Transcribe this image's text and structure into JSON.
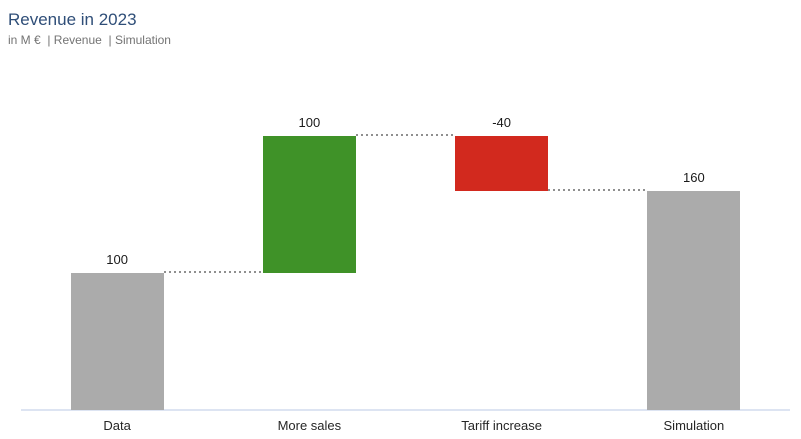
{
  "header": {
    "title": "Revenue in 2023",
    "subtitle": "in M €  | Revenue  | Simulation"
  },
  "chart_data": {
    "type": "bar",
    "variant": "waterfall",
    "title": "Revenue in 2023",
    "unit_label": "in M €",
    "measure_labels": [
      "Revenue",
      "Simulation"
    ],
    "categories": [
      "Data",
      "More sales",
      "Tariff increase",
      "Simulation"
    ],
    "values": [
      100,
      100,
      -40,
      160
    ],
    "value_labels": [
      "100",
      "100",
      "-40",
      "160"
    ],
    "bar_types": [
      "absolute",
      "increase",
      "decrease",
      "absolute"
    ],
    "cumulative_levels": [
      100,
      200,
      160,
      160
    ],
    "connector_style": "dotted",
    "grid": false,
    "legend": false,
    "ylim": [
      0,
      200
    ],
    "colors": {
      "absolute": "#ababab",
      "increase": "#3f9228",
      "decrease": "#d2291e",
      "axis_line": "#dde4f2",
      "title": "#2f4e78",
      "subtitle": "#737373",
      "label": "#1a1a1a"
    }
  }
}
